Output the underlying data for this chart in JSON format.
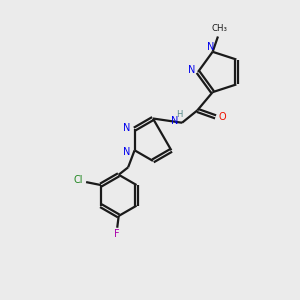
{
  "bg_color": "#ebebeb",
  "bond_color": "#1a1a1a",
  "N_color": "#0000ee",
  "O_color": "#ee1100",
  "Cl_color": "#228822",
  "F_color": "#aa00aa",
  "H_color": "#558888",
  "line_width": 1.6,
  "dbo": 0.055,
  "figsize": [
    3.0,
    3.0
  ],
  "dpi": 100,
  "xlim": [
    0,
    10
  ],
  "ylim": [
    0,
    10
  ]
}
